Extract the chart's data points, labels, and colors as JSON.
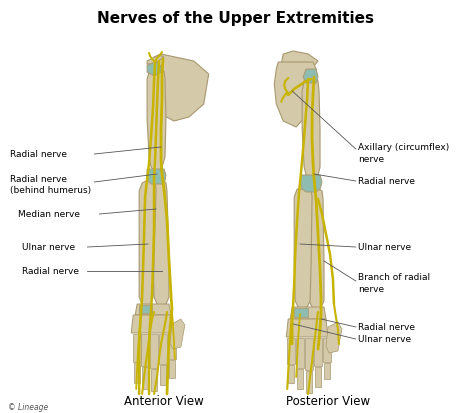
{
  "title": "Nerves of the Upper Extremities",
  "title_fontsize": 11,
  "title_fontweight": "bold",
  "background_color": "#ffffff",
  "bone_color": "#d4c9a8",
  "bone_edge_color": "#a89870",
  "nerve_color": "#c8b400",
  "cartilage_color": "#8fbcb0",
  "text_color": "#000000",
  "label_fontsize": 6.5,
  "view_label_fontsize": 8.5,
  "lineage_text": "© Lineage",
  "anterior_label": "Anterior View",
  "posterior_label": "Posterior View"
}
